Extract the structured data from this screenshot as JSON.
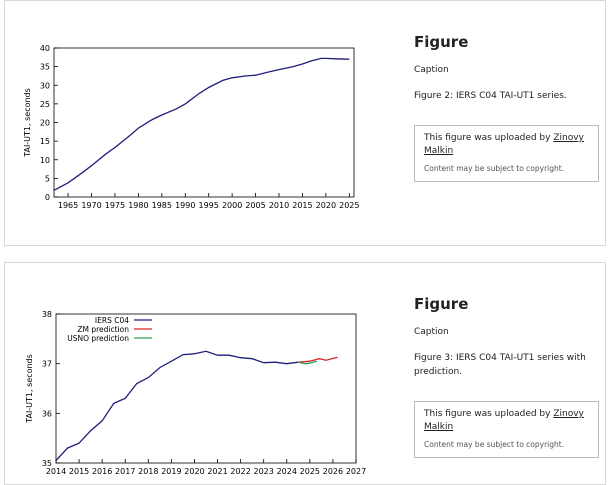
{
  "figures": [
    {
      "heading": "Figure",
      "caption_label": "Caption",
      "caption": "Figure 2: IERS C04 TAI-UT1 series.",
      "notice": {
        "prefix": "This figure was uploaded by",
        "author": "Zinovy Malkin",
        "note": "Content may be subject to copyright."
      },
      "chart": {
        "type": "line",
        "y_label": "TAI-UT1, seconds",
        "xlim": [
          1962,
          2026
        ],
        "xticks": [
          1965,
          1970,
          1975,
          1980,
          1985,
          1990,
          1995,
          2000,
          2005,
          2010,
          2015,
          2020,
          2025
        ],
        "ylim": [
          0,
          40
        ],
        "yticks": [
          0,
          5,
          10,
          15,
          20,
          25,
          30,
          35,
          40
        ],
        "series": [
          {
            "color": "#1f1f7a",
            "x": [
              1962,
              1965,
              1968,
              1970,
              1973,
              1975,
              1978,
              1980,
              1983,
              1985,
              1988,
              1990,
              1993,
              1995,
              1998,
              2000,
              2003,
              2005,
              2008,
              2010,
              2013,
              2015,
              2017,
              2019,
              2020,
              2022,
              2025
            ],
            "values": [
              1.8,
              3.8,
              6.5,
              8.4,
              11.5,
              13.3,
              16.3,
              18.5,
              20.8,
              22.0,
              23.6,
              25.0,
              27.8,
              29.4,
              31.3,
              32.0,
              32.5,
              32.7,
              33.6,
              34.2,
              35.0,
              35.7,
              36.6,
              37.2,
              37.2,
              37.1,
              37.0
            ]
          }
        ]
      }
    },
    {
      "heading": "Figure",
      "caption_label": "Caption",
      "caption": "Figure 3: IERS C04 TAI-UT1 series with prediction.",
      "notice": {
        "prefix": "This figure was uploaded by",
        "author": "Zinovy Malkin",
        "note": "Content may be subject to copyright."
      },
      "chart": {
        "type": "line",
        "y_label": "TAI-UT1, seconds",
        "xlim": [
          2014,
          2027
        ],
        "xticks": [
          2014,
          2015,
          2016,
          2017,
          2018,
          2019,
          2020,
          2021,
          2022,
          2023,
          2024,
          2025,
          2026,
          2027
        ],
        "ylim": [
          35,
          38
        ],
        "yticks": [
          35,
          36,
          37,
          38
        ],
        "legend": "top-left",
        "series": [
          {
            "name": "IERS C04",
            "color": "#1f1f7a",
            "x": [
              2014,
              2014.5,
              2015,
              2015.5,
              2016,
              2016.5,
              2017,
              2017.5,
              2018,
              2018.5,
              2019,
              2019.5,
              2020,
              2020.5,
              2021,
              2021.5,
              2022,
              2022.5,
              2023,
              2023.5,
              2024,
              2024.5
            ],
            "values": [
              35.05,
              35.3,
              35.4,
              35.65,
              35.85,
              36.2,
              36.3,
              36.6,
              36.72,
              36.92,
              37.05,
              37.18,
              37.2,
              37.25,
              37.17,
              37.17,
              37.12,
              37.1,
              37.02,
              37.03,
              37.0,
              37.03
            ]
          },
          {
            "name": "ZM prediction",
            "color": "#d62728",
            "x": [
              2024.5,
              2025,
              2025.4,
              2025.7,
              2026.2
            ],
            "values": [
              37.03,
              37.05,
              37.1,
              37.07,
              37.13
            ]
          },
          {
            "name": "USNO prediction",
            "color": "#2ca05a",
            "x": [
              2024.5,
              2024.8,
              2025,
              2025.3
            ],
            "values": [
              37.03,
              37.0,
              37.01,
              37.05
            ]
          }
        ]
      }
    }
  ]
}
